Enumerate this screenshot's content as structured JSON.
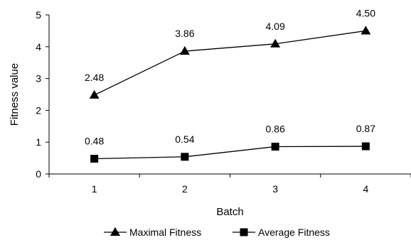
{
  "chart_data": {
    "type": "line",
    "xlabel": "Batch",
    "ylabel": "Fitness value",
    "x": [
      1,
      2,
      3,
      4
    ],
    "ylim": [
      0,
      5
    ],
    "yticks": [
      0,
      1,
      2,
      3,
      4,
      5
    ],
    "grid": false,
    "legend_position": "bottom",
    "series": [
      {
        "name": "Maximal Fitness",
        "marker": "triangle",
        "values": [
          2.48,
          3.86,
          4.09,
          4.5
        ],
        "labels": [
          "2.48",
          "3.86",
          "4.09",
          "4.50"
        ]
      },
      {
        "name": "Average Fitness",
        "marker": "square",
        "values": [
          0.48,
          0.54,
          0.86,
          0.87
        ],
        "labels": [
          "0.48",
          "0.54",
          "0.86",
          "0.87"
        ]
      }
    ],
    "colors": {
      "line": "#000000",
      "axis": "#000000"
    }
  }
}
